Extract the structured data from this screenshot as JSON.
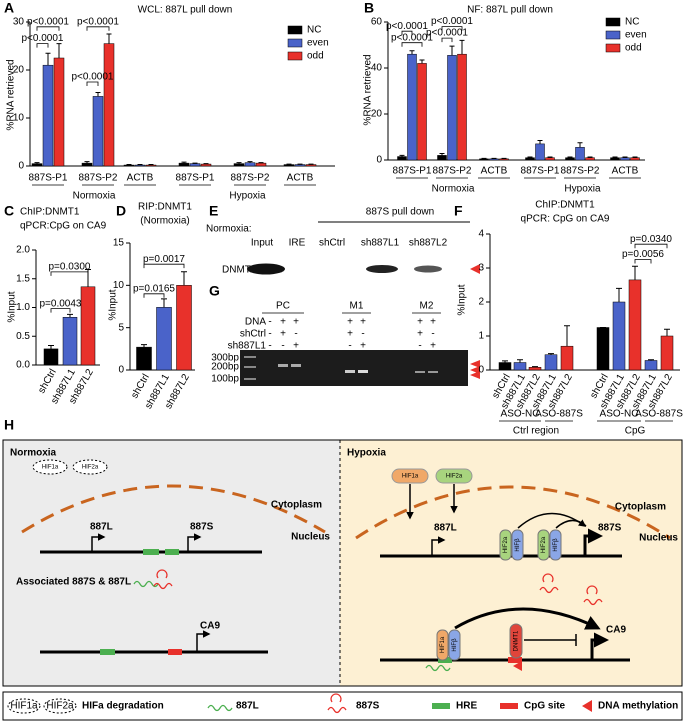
{
  "panel_letters": [
    "A",
    "B",
    "C",
    "D",
    "E",
    "F",
    "G",
    "H"
  ],
  "chart_data": [
    {
      "type": "grouped_bar",
      "title": "WCL: 887L pull down",
      "ylabel": "%RNA retrieved",
      "categories": [
        "887S-P1",
        "887S-P2",
        "ACTB",
        "887S-P1",
        "887S-P2",
        "ACTB"
      ],
      "group_labels": [
        "Normoxia",
        "Hypoxia"
      ],
      "series": [
        {
          "name": "NC",
          "color": "#000000",
          "values": [
            0.5,
            0.6,
            0.2,
            0.6,
            0.5,
            0.3
          ],
          "errors": [
            0.2,
            0.3,
            0.1,
            0.2,
            0.2,
            0.1
          ]
        },
        {
          "name": "even",
          "color": "#4a63c9",
          "values": [
            21,
            14.5,
            0.2,
            0.5,
            0.7,
            0.3
          ],
          "errors": [
            2.5,
            0.8,
            0.1,
            0.1,
            0.2,
            0.1
          ]
        },
        {
          "name": "odd",
          "color": "#e8312b",
          "values": [
            22.5,
            25.5,
            0.2,
            0.4,
            0.6,
            0.3
          ],
          "errors": [
            3,
            2,
            0.1,
            0.1,
            0.1,
            0.1
          ]
        }
      ],
      "ylim": [
        0,
        30
      ],
      "yticks": [
        0,
        10,
        20,
        30
      ],
      "legend": "upper right",
      "annotations": [
        "p<0.0001",
        "p<0.0001",
        "p<0.0001",
        "p<0.0001"
      ]
    },
    {
      "type": "grouped_bar",
      "title": "NF: 887L pull down",
      "ylabel": "%RNA retrieved",
      "categories": [
        "887S-P1",
        "887S-P2",
        "ACTB",
        "887S-P1",
        "887S-P2",
        "ACTB"
      ],
      "group_labels": [
        "Normoxia",
        "Hypoxia"
      ],
      "series": [
        {
          "name": "NC",
          "color": "#000000",
          "values": [
            1.5,
            2,
            0.5,
            1,
            1,
            1
          ],
          "errors": [
            0.5,
            0.8,
            0.2,
            0.3,
            0.3,
            0.3
          ]
        },
        {
          "name": "even",
          "color": "#4a63c9",
          "values": [
            46,
            45.5,
            0.5,
            7,
            5.5,
            1
          ],
          "errors": [
            1.5,
            4,
            0.2,
            1.5,
            2,
            0.3
          ]
        },
        {
          "name": "odd",
          "color": "#e8312b",
          "values": [
            42,
            46,
            0.5,
            1,
            1,
            1
          ],
          "errors": [
            1.5,
            6,
            0.2,
            0.3,
            0.3,
            0.3
          ]
        }
      ],
      "ylim": [
        0,
        60
      ],
      "yticks": [
        0,
        20,
        40,
        60
      ],
      "legend": "upper right",
      "annotations": [
        "p<0.0001",
        "p<0.0001",
        "p<0.0001",
        "p<0.0001"
      ]
    },
    {
      "type": "bar",
      "title": [
        "ChIP:DNMT1",
        "qPCR:CpG on CA9"
      ],
      "ylabel": "%Input",
      "categories": [
        "shCtrl",
        "sh887L1",
        "sh887L2"
      ],
      "values": [
        0.28,
        0.83,
        1.36
      ],
      "errors": [
        0.06,
        0.05,
        0.3
      ],
      "colors": [
        "#000000",
        "#4a63c9",
        "#e8312b"
      ],
      "ylim": [
        0,
        2
      ],
      "yticks": [
        {
          "value": 0,
          "label": "0.0"
        },
        0.5,
        {
          "value": 1,
          "label": "1.0"
        },
        1.5,
        {
          "value": 2,
          "label": "2.0"
        }
      ],
      "annotations": [
        "p=0.0043",
        "p=0.0300"
      ]
    },
    {
      "type": "bar",
      "title": [
        "RIP:DNMT1",
        "(Normoxia)"
      ],
      "ylabel": "%Input",
      "categories": [
        "shCtrl",
        "sh887L1",
        "sh887L2"
      ],
      "values": [
        2.7,
        7.4,
        10
      ],
      "errors": [
        0.3,
        1.0,
        1.6
      ],
      "colors": [
        "#000000",
        "#4a63c9",
        "#e8312b"
      ],
      "ylim": [
        0,
        15
      ],
      "yticks": [
        0,
        5,
        10,
        15
      ],
      "annotations": [
        "p=0.0165",
        "p=0.0017"
      ]
    },
    {
      "type": "bar",
      "title": [
        "ChIP:DNMT1",
        "qPCR: CpG on CA9"
      ],
      "ylabel": "%Input",
      "categories": [
        "shCtrl",
        "sh887L1",
        "sh887L2",
        "sh887L1",
        "sh887L2",
        "shCtrl",
        "sh887L1",
        "sh887L2",
        "sh887L1",
        "sh887L2"
      ],
      "values": [
        0.22,
        0.22,
        0.08,
        0.45,
        0.7,
        1.25,
        2.0,
        2.65,
        0.28,
        1.0
      ],
      "errors": [
        0.05,
        0.08,
        0.02,
        0.03,
        0.6,
        0,
        0.4,
        0.4,
        0.02,
        0.2
      ],
      "colors": [
        "#000000",
        "#4a63c9",
        "#e8312b",
        "#4a63c9",
        "#e8312b",
        "#000000",
        "#4a63c9",
        "#e8312b",
        "#4a63c9",
        "#e8312b"
      ],
      "group_labels": [
        "ASO-NC",
        "ASO-887S",
        "ASO-NC",
        "ASO-887S"
      ],
      "region_labels": [
        "Ctrl region",
        "CpG"
      ],
      "ylim": [
        0,
        4
      ],
      "yticks": [
        0,
        1,
        2,
        3,
        4
      ],
      "annotations": [
        "p=0.0056",
        "p=0.0340"
      ]
    }
  ],
  "gel_e": {
    "condition": "Normoxia:",
    "header": "887S pull down",
    "lanes": [
      "Input",
      "IRE",
      "shCtrl",
      "sh887L1",
      "sh887L2"
    ],
    "row_label": "DNMT1"
  },
  "gel_g": {
    "row_labels": [
      "DNA",
      "shCtrl",
      "sh887L1"
    ],
    "groups": [
      {
        "label": "PC",
        "signs": [
          [
            "-",
            "+",
            "+"
          ],
          [
            "-",
            "+",
            "-"
          ],
          [
            "-",
            "-",
            "+"
          ]
        ]
      },
      {
        "label": "M1",
        "signs": [
          [
            "+",
            "+"
          ],
          [
            "+",
            "-"
          ],
          [
            "-",
            "+"
          ]
        ]
      },
      {
        "label": "M2",
        "signs": [
          [
            "+",
            "+"
          ],
          [
            "+",
            "-"
          ],
          [
            "-",
            "+"
          ]
        ]
      }
    ],
    "ladder": [
      "300bp",
      "200bp",
      "100bp"
    ]
  },
  "diagram": {
    "normoxia": {
      "title": "Normoxia",
      "degraded": [
        "HIF1a",
        "HIF2a"
      ],
      "cytoplasm": "Cytoplasm",
      "nucleus": "Nucleus",
      "l887": "887L",
      "s887": "887S",
      "associated": "Associated 887S & 887L",
      "ca9": "CA9"
    },
    "hypoxia": {
      "title": "Hypoxia",
      "hif1a": "HIF1a",
      "hif2a": "HIF2a",
      "cytoplasm": "Cytoplasm",
      "nucleus": "Nucleus",
      "l887": "887L",
      "s887": "887S",
      "complex1": [
        "HIF2a",
        "HIFβ"
      ],
      "complex2": [
        "HIF2a",
        "HIFβ"
      ],
      "complex3": [
        "HIF1a",
        "HIFβ"
      ],
      "dnmt1": "DNMT1",
      "ca9": "CA9"
    },
    "legend": {
      "degraded": [
        "HIF1a",
        "HIF2a"
      ],
      "degradation": "HIFa degradation",
      "l887": "887L",
      "s887": "887S",
      "hre": "HRE",
      "cpg": "CpG site",
      "methylation": "DNA methylation"
    }
  }
}
